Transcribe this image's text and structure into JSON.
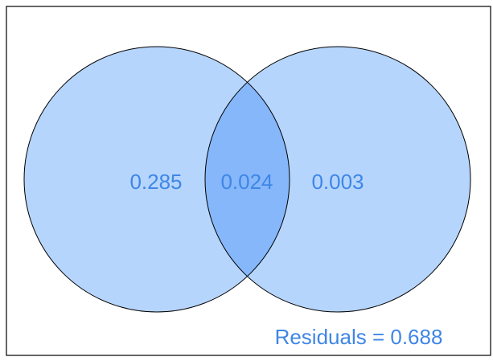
{
  "diagram": {
    "type": "venn",
    "regions": {
      "left_only": "0.285",
      "intersection": "0.024",
      "right_only": "0.003"
    },
    "residuals": {
      "text": "Residuals = 0.688"
    },
    "colors": {
      "circle_fill": "#b6d5fc",
      "intersection_fill": "#86b7fb",
      "text": "#3f86e6",
      "outline": "#000000",
      "frame": "#000000"
    }
  }
}
